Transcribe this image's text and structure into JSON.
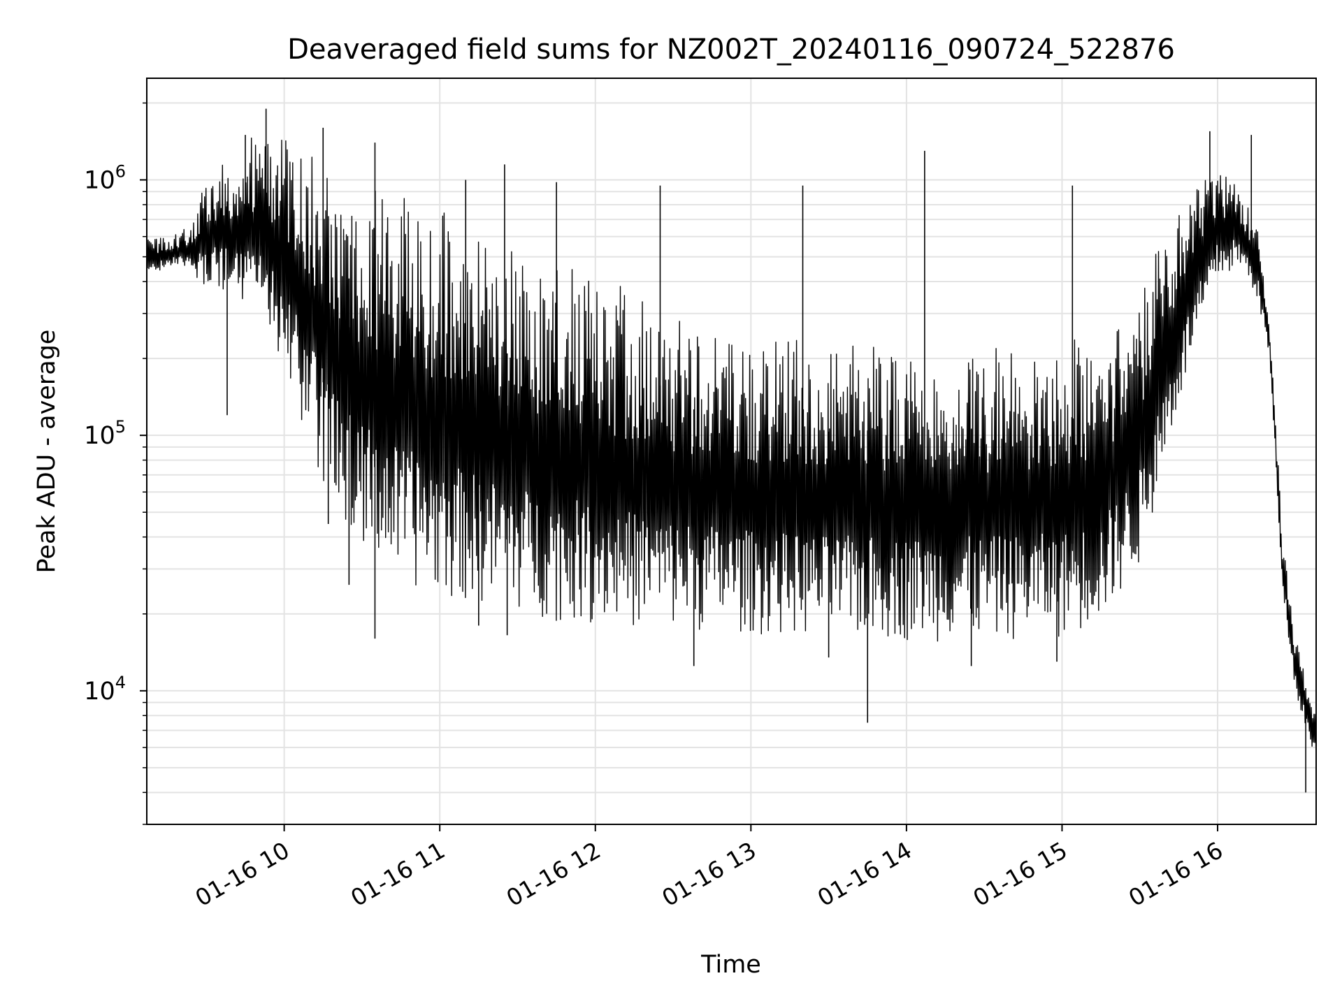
{
  "chart_data": {
    "type": "line",
    "title": "Deaveraged field sums for NZ002T_20240116_090724_522876",
    "xlabel": "Time",
    "ylabel": "Peak ADU - average",
    "y_scale": "log",
    "ylim": [
      3000,
      2500000
    ],
    "xlim": [
      "2024-01-16 09:07",
      "2024-01-16 16:38"
    ],
    "grid": true,
    "line_color": "#000000",
    "x_ticks": [
      {
        "time": "2024-01-16 10:00",
        "label": "01-16 10"
      },
      {
        "time": "2024-01-16 11:00",
        "label": "01-16 11"
      },
      {
        "time": "2024-01-16 12:00",
        "label": "01-16 12"
      },
      {
        "time": "2024-01-16 13:00",
        "label": "01-16 13"
      },
      {
        "time": "2024-01-16 14:00",
        "label": "01-16 14"
      },
      {
        "time": "2024-01-16 15:00",
        "label": "01-16 15"
      },
      {
        "time": "2024-01-16 16:00",
        "label": "01-16 16"
      }
    ],
    "y_ticks": [
      {
        "value": 10000,
        "base": "10",
        "exp": "4"
      },
      {
        "value": 100000,
        "base": "10",
        "exp": "5"
      },
      {
        "value": 1000000,
        "base": "10",
        "exp": "6"
      }
    ],
    "series": [
      {
        "envelope": [
          {
            "time": "2024-01-16 09:07",
            "upper": 580000,
            "lower": 420000
          },
          {
            "time": "2024-01-16 09:20",
            "upper": 620000,
            "lower": 460000
          },
          {
            "time": "2024-01-16 09:25",
            "upper": 700000,
            "lower": 420000
          },
          {
            "time": "2024-01-16 09:30",
            "upper": 1100000,
            "lower": 380000
          },
          {
            "time": "2024-01-16 09:40",
            "upper": 1200000,
            "lower": 350000
          },
          {
            "time": "2024-01-16 09:50",
            "upper": 1600000,
            "lower": 300000
          },
          {
            "time": "2024-01-16 10:00",
            "upper": 1500000,
            "lower": 180000
          },
          {
            "time": "2024-01-16 10:10",
            "upper": 1300000,
            "lower": 90000
          },
          {
            "time": "2024-01-16 10:20",
            "upper": 1200000,
            "lower": 50000
          },
          {
            "time": "2024-01-16 10:30",
            "upper": 1000000,
            "lower": 35000
          },
          {
            "time": "2024-01-16 10:45",
            "upper": 900000,
            "lower": 26000
          },
          {
            "time": "2024-01-16 11:00",
            "upper": 800000,
            "lower": 23000
          },
          {
            "time": "2024-01-16 11:20",
            "upper": 600000,
            "lower": 21000
          },
          {
            "time": "2024-01-16 11:40",
            "upper": 500000,
            "lower": 19000
          },
          {
            "time": "2024-01-16 12:00",
            "upper": 420000,
            "lower": 18000
          },
          {
            "time": "2024-01-16 12:30",
            "upper": 320000,
            "lower": 17000
          },
          {
            "time": "2024-01-16 13:00",
            "upper": 250000,
            "lower": 16500
          },
          {
            "time": "2024-01-16 13:30",
            "upper": 230000,
            "lower": 16000
          },
          {
            "time": "2024-01-16 14:00",
            "upper": 240000,
            "lower": 15500
          },
          {
            "time": "2024-01-16 14:30",
            "upper": 240000,
            "lower": 15500
          },
          {
            "time": "2024-01-16 15:00",
            "upper": 250000,
            "lower": 16000
          },
          {
            "time": "2024-01-16 15:15",
            "upper": 280000,
            "lower": 18000
          },
          {
            "time": "2024-01-16 15:30",
            "upper": 400000,
            "lower": 30000
          },
          {
            "time": "2024-01-16 15:40",
            "upper": 600000,
            "lower": 80000
          },
          {
            "time": "2024-01-16 15:50",
            "upper": 900000,
            "lower": 200000
          },
          {
            "time": "2024-01-16 16:00",
            "upper": 1100000,
            "lower": 400000
          },
          {
            "time": "2024-01-16 16:08",
            "upper": 1000000,
            "lower": 450000
          },
          {
            "time": "2024-01-16 16:15",
            "upper": 700000,
            "lower": 350000
          },
          {
            "time": "2024-01-16 16:20",
            "upper": 300000,
            "lower": 200000
          },
          {
            "time": "2024-01-16 16:25",
            "upper": 40000,
            "lower": 25000
          },
          {
            "time": "2024-01-16 16:30",
            "upper": 16000,
            "lower": 10000
          },
          {
            "time": "2024-01-16 16:38",
            "upper": 9000,
            "lower": 5000
          }
        ],
        "spikes": [
          {
            "time": "2024-01-16 09:45",
            "value": 1500000
          },
          {
            "time": "2024-01-16 09:53",
            "value": 1900000
          },
          {
            "time": "2024-01-16 10:15",
            "value": 1600000
          },
          {
            "time": "2024-01-16 10:35",
            "value": 1400000
          },
          {
            "time": "2024-01-16 11:10",
            "value": 1000000
          },
          {
            "time": "2024-01-16 11:25",
            "value": 1150000
          },
          {
            "time": "2024-01-16 11:45",
            "value": 980000
          },
          {
            "time": "2024-01-16 12:25",
            "value": 950000
          },
          {
            "time": "2024-01-16 13:20",
            "value": 950000
          },
          {
            "time": "2024-01-16 14:07",
            "value": 1300000
          },
          {
            "time": "2024-01-16 15:04",
            "value": 950000
          },
          {
            "time": "2024-01-16 15:57",
            "value": 1550000
          },
          {
            "time": "2024-01-16 16:13",
            "value": 1500000
          }
        ],
        "dips": [
          {
            "time": "2024-01-16 09:38",
            "value": 120000
          },
          {
            "time": "2024-01-16 10:17",
            "value": 45000
          },
          {
            "time": "2024-01-16 10:25",
            "value": 26000
          },
          {
            "time": "2024-01-16 10:35",
            "value": 16000
          },
          {
            "time": "2024-01-16 11:15",
            "value": 18000
          },
          {
            "time": "2024-01-16 11:26",
            "value": 16500
          },
          {
            "time": "2024-01-16 12:38",
            "value": 12500
          },
          {
            "time": "2024-01-16 13:30",
            "value": 13500
          },
          {
            "time": "2024-01-16 13:45",
            "value": 7500
          },
          {
            "time": "2024-01-16 14:25",
            "value": 12500
          },
          {
            "time": "2024-01-16 14:58",
            "value": 13000
          },
          {
            "time": "2024-01-16 16:34",
            "value": 4000
          }
        ]
      }
    ]
  }
}
